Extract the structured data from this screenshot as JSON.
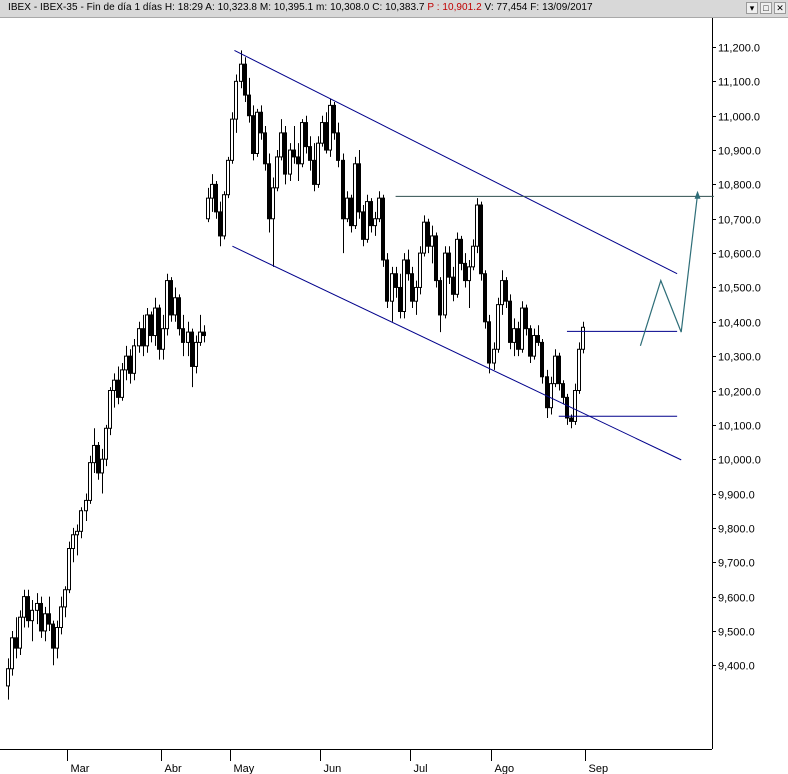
{
  "window": {
    "title_prefix": "IBEX - IBEX-35 - Fin de día 1 días",
    "stats": [
      {
        "label": "H:",
        "value": "18:29"
      },
      {
        "label": "A:",
        "value": "10,323.8"
      },
      {
        "label": "M:",
        "value": "10,395.1"
      },
      {
        "label": "m:",
        "value": "10,308.0"
      },
      {
        "label": "C:",
        "value": "10,383.7"
      },
      {
        "label": "P :",
        "value": "10,901.2",
        "highlight": true
      },
      {
        "label": "V:",
        "value": "77,454"
      },
      {
        "label": "F:",
        "value": "13/09/2017"
      }
    ],
    "buttons": {
      "down": "▾",
      "maximize": "□",
      "close": "✕"
    }
  },
  "chart_data": {
    "type": "candlestick",
    "title": "",
    "xlabel": "",
    "ylabel": "",
    "ylim": [
      9260,
      11310
    ],
    "yticks": [
      9400,
      9500,
      9600,
      9700,
      9800,
      9900,
      10000,
      10100,
      10200,
      10300,
      10400,
      10500,
      10600,
      10700,
      10800,
      10900,
      11000,
      11100,
      11200
    ],
    "ytick_labels": [
      "9,400.0",
      "9,500.0",
      "9,600.0",
      "9,700.0",
      "9,800.0",
      "9,900.0",
      "10,000.0",
      "10,100.0",
      "10,200.0",
      "10,300.0",
      "10,400.0",
      "10,500.0",
      "10,600.0",
      "10,700.0",
      "10,800.0",
      "10,900.0",
      "11,000.0",
      "11,100.0",
      "11,200.0"
    ],
    "xticks": [
      {
        "label": "Mar",
        "bar": 15
      },
      {
        "label": "Abr",
        "bar": 38
      },
      {
        "label": "May",
        "bar": 55
      },
      {
        "label": "Jun",
        "bar": 77
      },
      {
        "label": "Jul",
        "bar": 99
      },
      {
        "label": "Ago",
        "bar": 119
      },
      {
        "label": "Sep",
        "bar": 142
      }
    ],
    "grid": false,
    "colors": {
      "up": "#ffffff",
      "down": "#000000",
      "wick": "#000000",
      "channel": "#00008b",
      "levels": "#2f4f4f",
      "projection": "#2e6e78",
      "axis": "#000000"
    },
    "candles": [
      [
        9340,
        9420,
        9300,
        9390
      ],
      [
        9390,
        9500,
        9370,
        9480
      ],
      [
        9480,
        9540,
        9420,
        9450
      ],
      [
        9450,
        9560,
        9430,
        9540
      ],
      [
        9540,
        9620,
        9510,
        9600
      ],
      [
        9600,
        9620,
        9510,
        9530
      ],
      [
        9530,
        9590,
        9470,
        9560
      ],
      [
        9560,
        9610,
        9520,
        9580
      ],
      [
        9580,
        9600,
        9480,
        9500
      ],
      [
        9500,
        9570,
        9470,
        9550
      ],
      [
        9550,
        9600,
        9500,
        9520
      ],
      [
        9520,
        9530,
        9400,
        9450
      ],
      [
        9450,
        9530,
        9420,
        9510
      ],
      [
        9510,
        9600,
        9490,
        9570
      ],
      [
        9570,
        9630,
        9540,
        9620
      ],
      [
        9620,
        9760,
        9610,
        9740
      ],
      [
        9740,
        9800,
        9700,
        9780
      ],
      [
        9780,
        9810,
        9720,
        9790
      ],
      [
        9790,
        9860,
        9770,
        9850
      ],
      [
        9850,
        9900,
        9820,
        9880
      ],
      [
        9880,
        10010,
        9870,
        9990
      ],
      [
        9990,
        10090,
        9960,
        10040
      ],
      [
        10040,
        10050,
        9940,
        9960
      ],
      [
        9960,
        10030,
        9900,
        10000
      ],
      [
        10000,
        10100,
        9980,
        10090
      ],
      [
        10090,
        10210,
        10070,
        10200
      ],
      [
        10200,
        10250,
        10150,
        10230
      ],
      [
        10230,
        10270,
        10160,
        10180
      ],
      [
        10180,
        10280,
        10170,
        10260
      ],
      [
        10260,
        10330,
        10230,
        10300
      ],
      [
        10300,
        10320,
        10220,
        10250
      ],
      [
        10250,
        10350,
        10230,
        10330
      ],
      [
        10330,
        10400,
        10310,
        10380
      ],
      [
        10380,
        10420,
        10300,
        10330
      ],
      [
        10330,
        10440,
        10310,
        10420
      ],
      [
        10420,
        10430,
        10340,
        10360
      ],
      [
        10360,
        10470,
        10330,
        10440
      ],
      [
        10440,
        10450,
        10290,
        10320
      ],
      [
        10320,
        10420,
        10290,
        10380
      ],
      [
        10380,
        10540,
        10360,
        10520
      ],
      [
        10520,
        10530,
        10400,
        10420
      ],
      [
        10420,
        10500,
        10400,
        10470
      ],
      [
        10470,
        10480,
        10360,
        10380
      ],
      [
        10380,
        10420,
        10300,
        10340
      ],
      [
        10340,
        10400,
        10300,
        10370
      ],
      [
        10370,
        10380,
        10210,
        10270
      ],
      [
        10270,
        10360,
        10250,
        10340
      ],
      [
        10340,
        10420,
        10330,
        10370
      ],
      [
        10370,
        10390,
        10340,
        10360
      ],
      [
        10700,
        10790,
        10690,
        10760
      ],
      [
        10760,
        10830,
        10720,
        10800
      ],
      [
        10800,
        10810,
        10700,
        10720
      ],
      [
        10720,
        10750,
        10620,
        10650
      ],
      [
        10650,
        10780,
        10640,
        10770
      ],
      [
        10770,
        10880,
        10760,
        10870
      ],
      [
        10870,
        11010,
        10860,
        10990
      ],
      [
        10990,
        11120,
        10950,
        11100
      ],
      [
        11100,
        11190,
        11080,
        11150
      ],
      [
        11150,
        11170,
        11040,
        11060
      ],
      [
        11060,
        11110,
        10980,
        11000
      ],
      [
        11000,
        11030,
        10870,
        10890
      ],
      [
        10890,
        11020,
        10880,
        11010
      ],
      [
        11010,
        11030,
        10930,
        10950
      ],
      [
        10950,
        10970,
        10840,
        10860
      ],
      [
        10860,
        10890,
        10660,
        10700
      ],
      [
        10700,
        10820,
        10560,
        10790
      ],
      [
        10790,
        10900,
        10780,
        10880
      ],
      [
        10880,
        10990,
        10870,
        10950
      ],
      [
        10950,
        10970,
        10800,
        10830
      ],
      [
        10830,
        10920,
        10810,
        10900
      ],
      [
        10900,
        10970,
        10860,
        10880
      ],
      [
        10880,
        10920,
        10810,
        10860
      ],
      [
        10860,
        10990,
        10850,
        10980
      ],
      [
        10980,
        11000,
        10890,
        10910
      ],
      [
        10910,
        10940,
        10840,
        10870
      ],
      [
        10870,
        10920,
        10780,
        10800
      ],
      [
        10800,
        10940,
        10790,
        10920
      ],
      [
        10920,
        11000,
        10910,
        10980
      ],
      [
        10980,
        11010,
        10890,
        10900
      ],
      [
        10900,
        11050,
        10880,
        11030
      ],
      [
        11030,
        11040,
        10930,
        10950
      ],
      [
        10950,
        10980,
        10850,
        10870
      ],
      [
        10870,
        10890,
        10600,
        10700
      ],
      [
        10700,
        10780,
        10690,
        10760
      ],
      [
        10760,
        10770,
        10660,
        10680
      ],
      [
        10680,
        10880,
        10670,
        10860
      ],
      [
        10860,
        10900,
        10700,
        10720
      ],
      [
        10720,
        10740,
        10620,
        10640
      ],
      [
        10640,
        10770,
        10630,
        10750
      ],
      [
        10750,
        10760,
        10660,
        10680
      ],
      [
        10680,
        10720,
        10650,
        10700
      ],
      [
        10700,
        10780,
        10690,
        10760
      ],
      [
        10760,
        10770,
        10560,
        10580
      ],
      [
        10580,
        10600,
        10440,
        10460
      ],
      [
        10460,
        10560,
        10400,
        10540
      ],
      [
        10540,
        10560,
        10470,
        10500
      ],
      [
        10500,
        10540,
        10410,
        10430
      ],
      [
        10430,
        10600,
        10410,
        10580
      ],
      [
        10580,
        10610,
        10520,
        10540
      ],
      [
        10540,
        10560,
        10440,
        10460
      ],
      [
        10460,
        10520,
        10420,
        10500
      ],
      [
        10500,
        10620,
        10480,
        10600
      ],
      [
        10600,
        10710,
        10590,
        10690
      ],
      [
        10690,
        10700,
        10600,
        10620
      ],
      [
        10620,
        10680,
        10570,
        10650
      ],
      [
        10650,
        10660,
        10500,
        10520
      ],
      [
        10520,
        10530,
        10370,
        10420
      ],
      [
        10420,
        10620,
        10410,
        10600
      ],
      [
        10600,
        10620,
        10510,
        10530
      ],
      [
        10530,
        10560,
        10460,
        10480
      ],
      [
        10480,
        10660,
        10470,
        10640
      ],
      [
        10640,
        10650,
        10550,
        10570
      ],
      [
        10570,
        10600,
        10500,
        10520
      ],
      [
        10520,
        10580,
        10440,
        10560
      ],
      [
        10560,
        10640,
        10550,
        10620
      ],
      [
        10620,
        10760,
        10600,
        10740
      ],
      [
        10740,
        10750,
        10520,
        10540
      ],
      [
        10540,
        10550,
        10380,
        10400
      ],
      [
        10400,
        10420,
        10250,
        10280
      ],
      [
        10280,
        10340,
        10260,
        10320
      ],
      [
        10320,
        10470,
        10310,
        10450
      ],
      [
        10450,
        10550,
        10420,
        10520
      ],
      [
        10520,
        10530,
        10440,
        10460
      ],
      [
        10460,
        10480,
        10320,
        10340
      ],
      [
        10340,
        10410,
        10300,
        10380
      ],
      [
        10380,
        10400,
        10300,
        10320
      ],
      [
        10320,
        10460,
        10310,
        10440
      ],
      [
        10440,
        10450,
        10360,
        10380
      ],
      [
        10380,
        10390,
        10280,
        10300
      ],
      [
        10300,
        10380,
        10290,
        10360
      ],
      [
        10360,
        10390,
        10330,
        10340
      ],
      [
        10340,
        10350,
        10220,
        10240
      ],
      [
        10240,
        10260,
        10120,
        10150
      ],
      [
        10150,
        10240,
        10130,
        10220
      ],
      [
        10220,
        10320,
        10210,
        10300
      ],
      [
        10300,
        10310,
        10200,
        10220
      ],
      [
        10220,
        10230,
        10160,
        10180
      ],
      [
        10180,
        10190,
        10100,
        10120
      ],
      [
        10120,
        10130,
        10090,
        10110
      ],
      [
        10110,
        10220,
        10100,
        10200
      ],
      [
        10200,
        10340,
        10190,
        10320
      ],
      [
        10320,
        10400,
        10308,
        10384
      ]
    ],
    "lines": [
      {
        "kind": "channel-upper",
        "x1": 55.5,
        "y1": 11190,
        "x2": 164,
        "y2": 10540
      },
      {
        "kind": "channel-lower",
        "x1": 55,
        "y1": 10620,
        "x2": 165,
        "y2": 9998
      },
      {
        "kind": "resistance",
        "x1": 95,
        "y1": 10765,
        "x2": 173,
        "y2": 10765
      },
      {
        "kind": "level",
        "x1": 137,
        "y1": 10372,
        "x2": 164,
        "y2": 10372
      },
      {
        "kind": "support",
        "x1": 135,
        "y1": 10125,
        "x2": 164,
        "y2": 10125
      }
    ],
    "projection": [
      [
        155,
        10330
      ],
      [
        160,
        10520
      ],
      [
        165,
        10370
      ],
      [
        169,
        10770
      ]
    ]
  }
}
